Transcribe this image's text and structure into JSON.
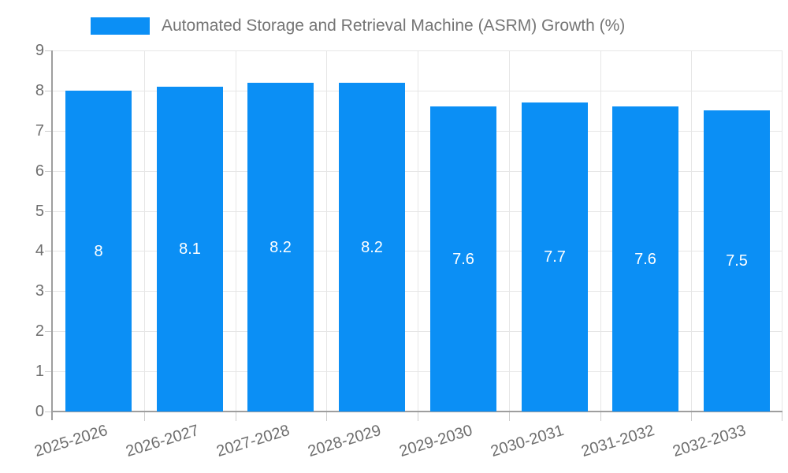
{
  "legend": {
    "label": "Automated Storage and Retrieval Machine (ASRM) Growth (%)"
  },
  "colors": {
    "bar": "#0b8ff5",
    "grid": "#e6e6e6",
    "axis": "#9e9e9e",
    "tick": "#cccccc",
    "axis_text": "#6e6e6e",
    "legend_text": "#757575",
    "value_text": "#ffffff"
  },
  "chart_data": {
    "type": "bar",
    "title": "Automated Storage and Retrieval Machine (ASRM) Growth (%)",
    "categories": [
      "2025-2026",
      "2026-2027",
      "2027-2028",
      "2028-2029",
      "2029-2030",
      "2030-2031",
      "2031-2032",
      "2032-2033"
    ],
    "values": [
      8,
      8.1,
      8.2,
      8.2,
      7.6,
      7.7,
      7.6,
      7.5
    ],
    "value_labels": [
      "8",
      "8.1",
      "8.2",
      "8.2",
      "7.6",
      "7.7",
      "7.6",
      "7.5"
    ],
    "xlabel": "",
    "ylabel": "",
    "ylim": [
      0,
      9
    ],
    "yticks": [
      0,
      1,
      2,
      3,
      4,
      5,
      6,
      7,
      8,
      9
    ],
    "grid": true,
    "legend_position": "top",
    "x_tick_rotation_deg": -17
  }
}
